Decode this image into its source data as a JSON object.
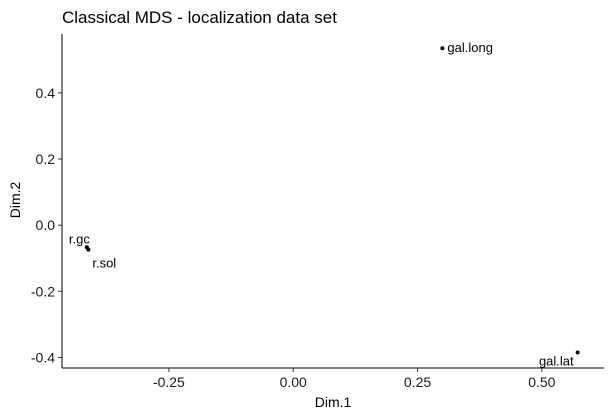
{
  "chart_data": {
    "type": "scatter",
    "title": "Classical MDS - localization data set",
    "xlabel": "Dim.1",
    "ylabel": "Dim.2",
    "xlim": [
      -0.465,
      0.625
    ],
    "ylim": [
      -0.432,
      0.578
    ],
    "xticks": [
      -0.25,
      0.0,
      0.25,
      0.5
    ],
    "xtick_labels": [
      "-0.25",
      "0.00",
      "0.25",
      "0.50"
    ],
    "yticks": [
      -0.4,
      -0.2,
      0.0,
      0.2,
      0.4
    ],
    "ytick_labels": [
      "-0.4",
      "-0.2",
      "0.0",
      "0.2",
      "0.4"
    ],
    "grid": false,
    "legend": "none",
    "points": [
      {
        "label": "gal.long",
        "x": 0.3,
        "y": 0.535
      },
      {
        "label": "r.gc",
        "x": -0.415,
        "y": -0.067
      },
      {
        "label": "r.sol",
        "x": -0.412,
        "y": -0.074
      },
      {
        "label": "gal.lat",
        "x": 0.572,
        "y": -0.385
      }
    ],
    "colors": {
      "point": "#000000",
      "axis": "#000000"
    }
  }
}
